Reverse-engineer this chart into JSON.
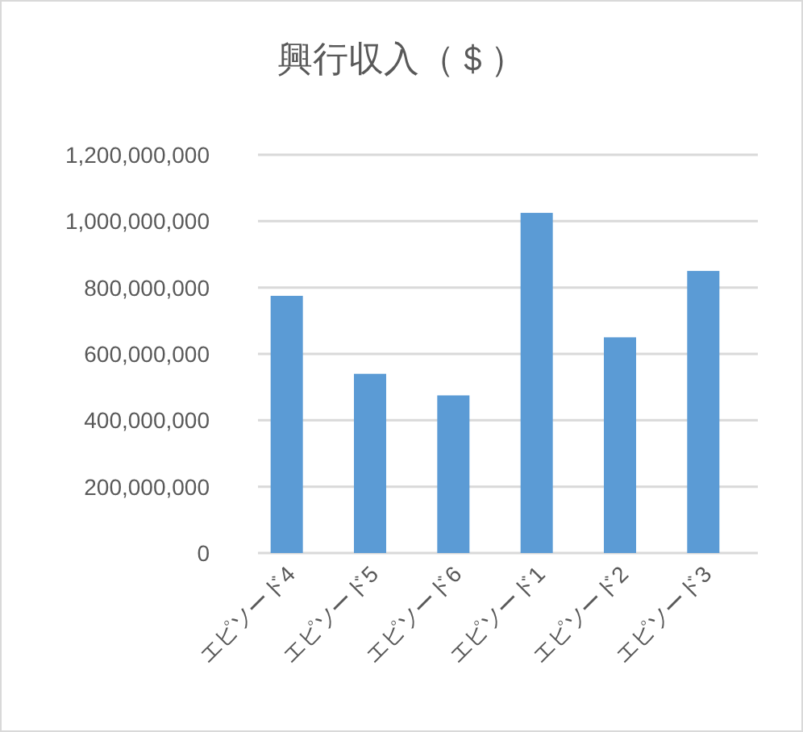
{
  "chart_data": {
    "type": "bar",
    "title": "興行収入（＄）",
    "categories": [
      "エピソード4",
      "エピソード5",
      "エピソード6",
      "エピソード1",
      "エピソード2",
      "エピソード3"
    ],
    "values": [
      775000000,
      540000000,
      475000000,
      1025000000,
      650000000,
      850000000
    ],
    "color": "#5b9bd5",
    "ylim": [
      0,
      1200000000
    ],
    "yticks": [
      {
        "value": 0,
        "label": "0"
      },
      {
        "value": 200000000,
        "label": "200,000,000"
      },
      {
        "value": 400000000,
        "label": "400,000,000"
      },
      {
        "value": 600000000,
        "label": "600,000,000"
      },
      {
        "value": 800000000,
        "label": "800,000,000"
      },
      {
        "value": 1000000000,
        "label": "1,000,000,000"
      },
      {
        "value": 1200000000,
        "label": "1,200,000,000"
      }
    ],
    "grid": true
  }
}
